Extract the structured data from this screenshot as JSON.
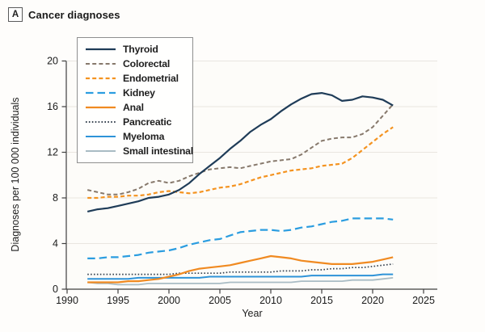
{
  "panel": {
    "label": "A",
    "title": "Cancer diagnoses"
  },
  "axes": {
    "xlabel": "Year",
    "ylabel": "Diagnoses per 100 000 individuals"
  },
  "chart_data": {
    "type": "line",
    "title": "Cancer diagnoses",
    "xlabel": "Year",
    "ylabel": "Diagnoses per 100 000 individuals",
    "xlim": [
      1990,
      2025
    ],
    "ylim": [
      0,
      20
    ],
    "xticks": [
      1990,
      1995,
      2000,
      2005,
      2010,
      2015,
      2020,
      2025
    ],
    "yticks": [
      0,
      4,
      8,
      12,
      16,
      20
    ],
    "grid": "horizontal-light",
    "legend_position": "top-left",
    "x": [
      1992,
      1993,
      1994,
      1995,
      1996,
      1997,
      1998,
      1999,
      2000,
      2001,
      2002,
      2003,
      2004,
      2005,
      2006,
      2007,
      2008,
      2009,
      2010,
      2011,
      2012,
      2013,
      2014,
      2015,
      2016,
      2017,
      2018,
      2019,
      2020,
      2021,
      2022
    ],
    "series": [
      {
        "name": "Thyroid",
        "color": "#1f3c58",
        "dash": "solid",
        "width": 2.2,
        "values": [
          6.8,
          7.0,
          7.1,
          7.3,
          7.5,
          7.7,
          8.0,
          8.1,
          8.3,
          8.7,
          9.3,
          10.1,
          10.8,
          11.5,
          12.3,
          13.0,
          13.8,
          14.4,
          14.9,
          15.6,
          16.2,
          16.7,
          17.1,
          17.2,
          17.0,
          16.5,
          16.6,
          16.9,
          16.8,
          16.6,
          16.1
        ]
      },
      {
        "name": "Colorectal",
        "color": "#87796c",
        "dash": "dashed",
        "width": 2.0,
        "values": [
          8.7,
          8.5,
          8.3,
          8.3,
          8.5,
          8.8,
          9.3,
          9.5,
          9.3,
          9.5,
          9.9,
          10.2,
          10.5,
          10.6,
          10.7,
          10.6,
          10.8,
          11.0,
          11.2,
          11.3,
          11.4,
          11.8,
          12.4,
          13.0,
          13.2,
          13.3,
          13.3,
          13.6,
          14.2,
          15.2,
          16.2
        ]
      },
      {
        "name": "Endometrial",
        "color": "#f49320",
        "dash": "dashed",
        "width": 2.2,
        "values": [
          8.0,
          8.0,
          8.1,
          8.1,
          8.2,
          8.2,
          8.3,
          8.5,
          8.6,
          8.5,
          8.4,
          8.5,
          8.7,
          8.9,
          9.0,
          9.2,
          9.5,
          9.8,
          10.0,
          10.2,
          10.4,
          10.5,
          10.6,
          10.8,
          10.9,
          11.0,
          11.5,
          12.2,
          12.9,
          13.6,
          14.2
        ]
      },
      {
        "name": "Kidney",
        "color": "#2b9de0",
        "dash": "longdash",
        "width": 2.2,
        "values": [
          2.7,
          2.7,
          2.8,
          2.8,
          2.9,
          3.0,
          3.2,
          3.3,
          3.4,
          3.6,
          3.9,
          4.1,
          4.3,
          4.4,
          4.7,
          5.0,
          5.1,
          5.2,
          5.2,
          5.1,
          5.2,
          5.4,
          5.5,
          5.7,
          5.9,
          6.0,
          6.2,
          6.2,
          6.2,
          6.2,
          6.1
        ]
      },
      {
        "name": "Anal",
        "color": "#f08a21",
        "dash": "solid",
        "width": 2.2,
        "values": [
          0.6,
          0.6,
          0.6,
          0.6,
          0.7,
          0.7,
          0.8,
          0.9,
          1.1,
          1.3,
          1.6,
          1.8,
          1.9,
          2.0,
          2.1,
          2.3,
          2.5,
          2.7,
          2.9,
          2.8,
          2.7,
          2.5,
          2.4,
          2.3,
          2.2,
          2.2,
          2.2,
          2.3,
          2.4,
          2.6,
          2.8
        ]
      },
      {
        "name": "Pancreatic",
        "color": "#36424f",
        "dash": "dotted",
        "width": 1.7,
        "values": [
          1.3,
          1.3,
          1.3,
          1.3,
          1.3,
          1.3,
          1.3,
          1.3,
          1.3,
          1.4,
          1.4,
          1.4,
          1.4,
          1.4,
          1.5,
          1.5,
          1.5,
          1.5,
          1.5,
          1.6,
          1.6,
          1.6,
          1.7,
          1.7,
          1.8,
          1.8,
          1.9,
          1.9,
          2.0,
          2.1,
          2.2
        ]
      },
      {
        "name": "Myeloma",
        "color": "#2e93d8",
        "dash": "solid",
        "width": 2.0,
        "values": [
          0.9,
          0.9,
          0.9,
          0.9,
          0.9,
          1.0,
          1.0,
          1.0,
          1.0,
          1.0,
          1.0,
          1.0,
          1.1,
          1.1,
          1.1,
          1.1,
          1.1,
          1.1,
          1.1,
          1.1,
          1.1,
          1.1,
          1.2,
          1.2,
          1.2,
          1.2,
          1.2,
          1.2,
          1.2,
          1.3,
          1.3
        ]
      },
      {
        "name": "Small intestinal",
        "color": "#a9bcc4",
        "dash": "solid",
        "width": 1.8,
        "values": [
          0.6,
          0.5,
          0.5,
          0.4,
          0.4,
          0.4,
          0.5,
          0.5,
          0.5,
          0.5,
          0.5,
          0.5,
          0.5,
          0.5,
          0.6,
          0.6,
          0.6,
          0.6,
          0.6,
          0.6,
          0.6,
          0.7,
          0.7,
          0.7,
          0.7,
          0.7,
          0.8,
          0.8,
          0.8,
          0.9,
          1.0
        ]
      }
    ],
    "style": {
      "grid_color": "#e9e6e0",
      "axis_color": "#3f3f3f",
      "plot_bg": "#fdfcf9",
      "tick_label_color": "#1a1a1a"
    }
  }
}
